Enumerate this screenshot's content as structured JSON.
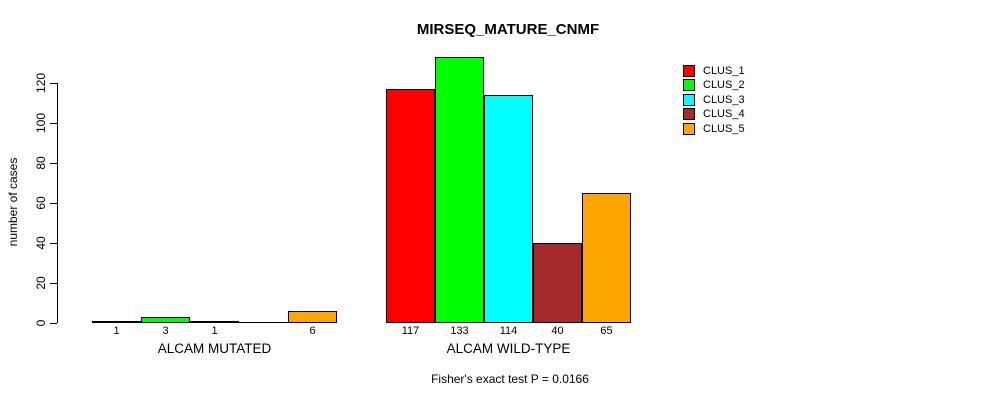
{
  "title": "MIRSEQ_MATURE_CNMF",
  "footer": "Fisher's exact test P = 0.0166",
  "y_axis": {
    "label": "number of cases",
    "ticks": [
      0,
      20,
      40,
      60,
      80,
      100,
      120
    ]
  },
  "chart_data": {
    "type": "bar",
    "title": "MIRSEQ_MATURE_CNMF",
    "xlabel": "",
    "ylabel": "number of cases",
    "ylim": [
      0,
      133
    ],
    "grid": false,
    "legend_position": "topright",
    "categories": [
      "ALCAM MUTATED",
      "ALCAM WILD-TYPE"
    ],
    "series": [
      {
        "name": "CLUS_1",
        "color": "#FF0000",
        "values": [
          1,
          117
        ]
      },
      {
        "name": "CLUS_2",
        "color": "#00FF00",
        "values": [
          3,
          133
        ]
      },
      {
        "name": "CLUS_3",
        "color": "#00FFFF",
        "values": [
          1,
          114
        ]
      },
      {
        "name": "CLUS_4",
        "color": "#A52A2A",
        "values": [
          0,
          40
        ]
      },
      {
        "name": "CLUS_5",
        "color": "#FFA500",
        "values": [
          6,
          65
        ]
      }
    ],
    "bar_labels": [
      [
        "1",
        "3",
        "1",
        "",
        "6"
      ],
      [
        "117",
        "133",
        "114",
        "40",
        "65"
      ]
    ],
    "annotation": "Fisher's exact test P = 0.0166"
  }
}
